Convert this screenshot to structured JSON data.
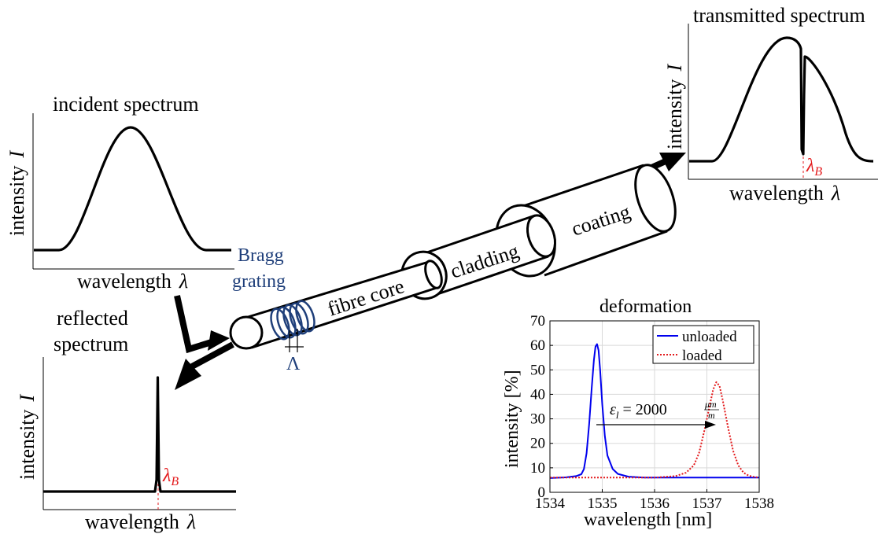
{
  "incident": {
    "title": "incident spectrum",
    "ylabel_text": "intensity",
    "ylabel_sym": "I",
    "xlabel_text": "wavelength",
    "xlabel_sym": "λ"
  },
  "transmitted": {
    "title": "transmitted spectrum",
    "ylabel_text": "intensity",
    "ylabel_sym": "I",
    "xlabel_text": "wavelength",
    "xlabel_sym": "λ",
    "marker": "λ",
    "marker_sub": "B"
  },
  "reflected": {
    "title_line1": "reflected",
    "title_line2": "spectrum",
    "ylabel_text": "intensity",
    "ylabel_sym": "I",
    "xlabel_text": "wavelength",
    "xlabel_sym": "λ",
    "marker": "λ",
    "marker_sub": "B"
  },
  "fibre": {
    "bragg_line1": "Bragg",
    "bragg_line2": "grating",
    "period": "Λ",
    "core_label": "fibre core",
    "cladding_label": "cladding",
    "coating_label": "coating"
  },
  "colors": {
    "bragg": "#1f3f7a",
    "red": "#e31a1c",
    "blue": "#0000ee",
    "grid": "#d9d9d9"
  },
  "chart_data": {
    "type": "line",
    "title": "deformation",
    "xlabel": "wavelength [nm]",
    "ylabel": "intensity [%]",
    "xlim": [
      1534,
      1538
    ],
    "ylim": [
      0,
      70
    ],
    "xticks": [
      "1534",
      "1535",
      "1536",
      "1537",
      "1538"
    ],
    "yticks": [
      "0",
      "10",
      "20",
      "30",
      "40",
      "50",
      "60",
      "70"
    ],
    "grid": true,
    "legend_position": "top-right",
    "annotation": {
      "eps": "ε",
      "sub": "l",
      "eq": " = 2000",
      "num": "μm",
      "den": "m"
    },
    "series": [
      {
        "name": "unloaded",
        "style": "solid",
        "x": [
          1534,
          1534.3,
          1534.5,
          1534.6,
          1534.65,
          1534.7,
          1534.75,
          1534.8,
          1534.84,
          1534.87,
          1534.9,
          1534.93,
          1534.96,
          1535.0,
          1535.05,
          1535.1,
          1535.2,
          1535.3,
          1535.5,
          1535.8,
          1536.0,
          1536.5,
          1537.0,
          1537.5,
          1538
        ],
        "values": [
          5.8,
          6.1,
          6.6,
          7.4,
          9.5,
          16,
          28,
          43,
          54,
          59.5,
          60.5,
          58,
          50,
          36,
          23,
          15,
          9.5,
          7.5,
          6.4,
          6.0,
          6.0,
          6.0,
          6.0,
          6.0,
          6.0
        ]
      },
      {
        "name": "loaded",
        "style": "dotted",
        "x": [
          1534,
          1534.5,
          1535,
          1535.5,
          1536,
          1536.4,
          1536.6,
          1536.75,
          1536.85,
          1536.95,
          1537.05,
          1537.12,
          1537.18,
          1537.24,
          1537.3,
          1537.4,
          1537.5,
          1537.6,
          1537.7,
          1537.8,
          1537.9,
          1538
        ],
        "values": [
          6.0,
          6.0,
          6.0,
          6.0,
          6.0,
          6.6,
          8.0,
          11,
          16,
          25,
          35,
          42,
          45,
          43.5,
          38,
          27,
          17,
          11,
          8,
          6.8,
          6.3,
          6.0
        ]
      }
    ]
  }
}
